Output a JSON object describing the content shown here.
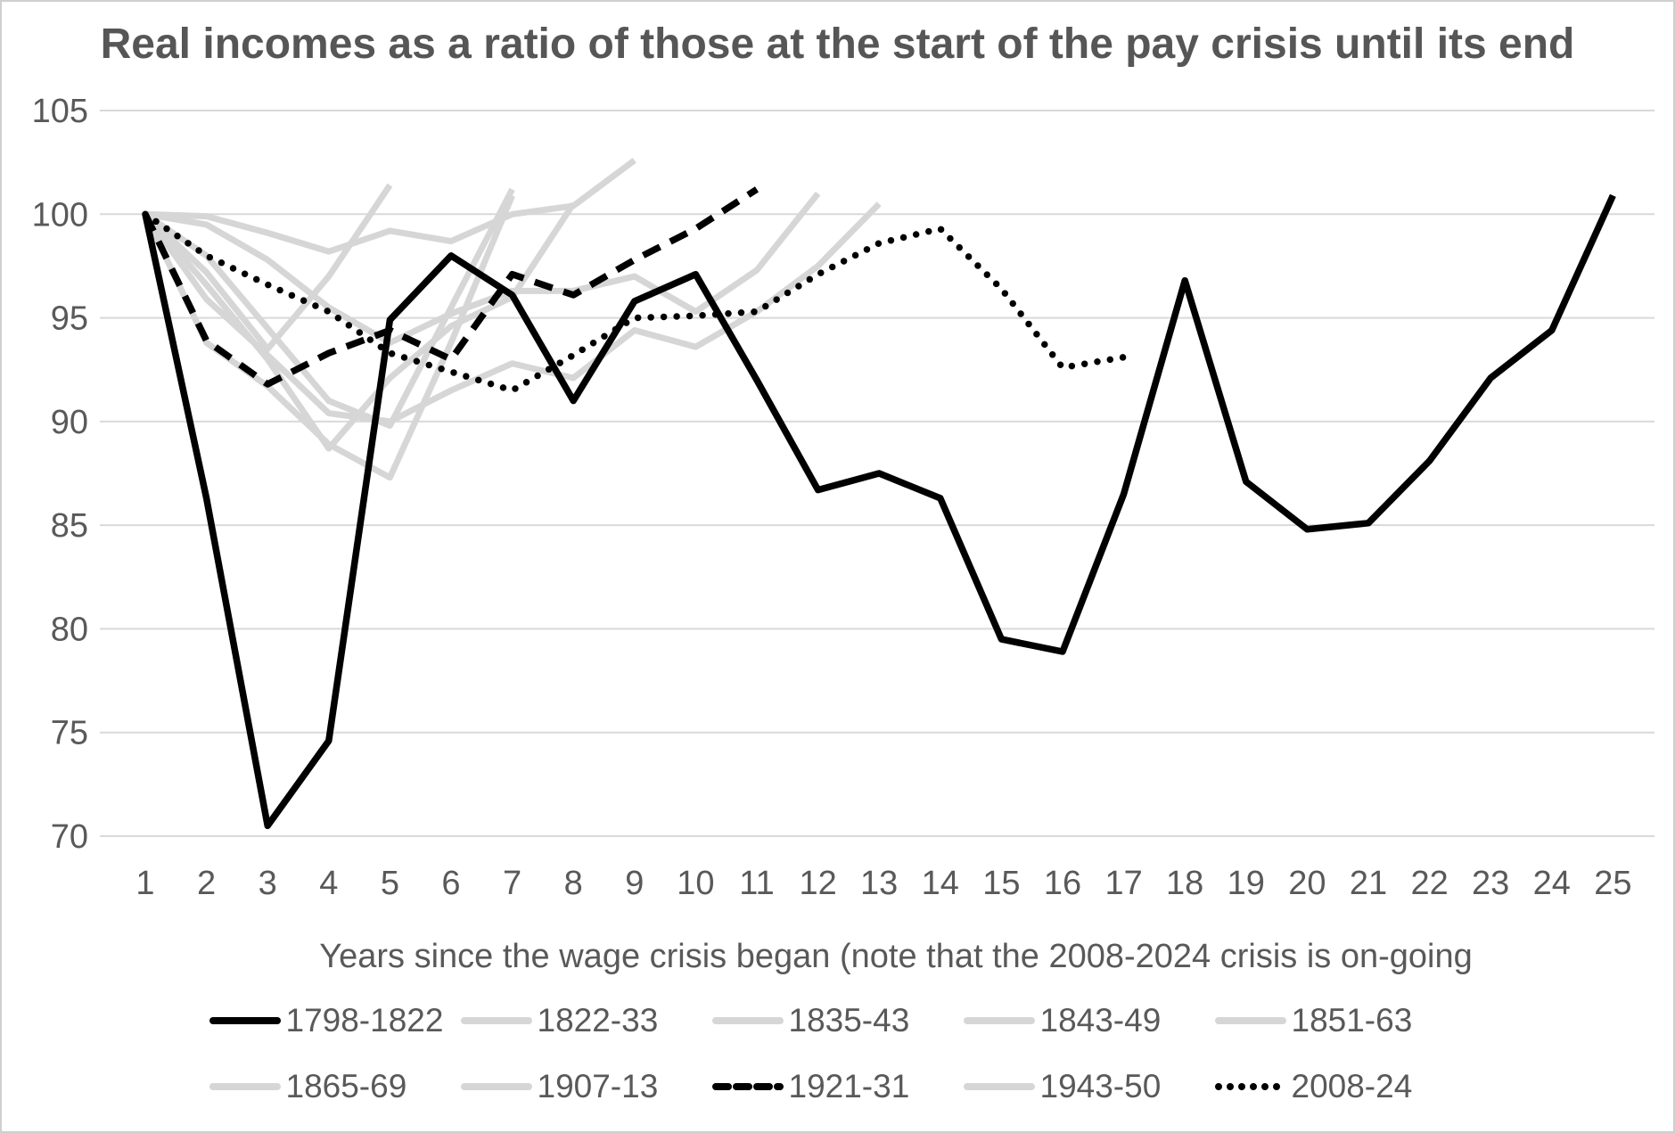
{
  "window": {
    "background": "#ffffff",
    "frame_border_color": "#cfcfcf"
  },
  "chart_data": {
    "type": "line",
    "title": "Real incomes as a ratio of those at the start of the pay crisis until its end",
    "xlabel": "Years since the wage crisis began (note that the 2008-2024 crisis is on-going",
    "ylabel": "",
    "xlim": [
      1,
      25
    ],
    "ylim": [
      70,
      105
    ],
    "grid": "horizontal",
    "gridline_color": "#d9d9d9",
    "axis_text_color": "#595959",
    "title_color": "#565656",
    "legend_position": "bottom",
    "yticks": [
      105,
      100,
      95,
      90,
      85,
      80,
      75,
      70
    ],
    "xticks": [
      1,
      2,
      3,
      4,
      5,
      6,
      7,
      8,
      9,
      10,
      11,
      12,
      13,
      14,
      15,
      16,
      17,
      18,
      19,
      20,
      21,
      22,
      23,
      24,
      25
    ],
    "series": [
      {
        "name": "1798-1822",
        "style": "solid",
        "color": "#000000",
        "width": 7.5,
        "values": [
          100,
          86.3,
          70.5,
          74.6,
          94.9,
          98.0,
          96.1,
          91.0,
          95.8,
          97.1,
          92.0,
          86.7,
          87.5,
          86.3,
          79.5,
          78.9,
          86.5,
          96.8,
          87.1,
          84.8,
          85.1,
          88.1,
          92.1,
          94.4,
          100.9
        ]
      },
      {
        "name": "1822-33",
        "style": "solid",
        "color": "#d6d6d6",
        "width": 7,
        "values": [
          100,
          99.5,
          97.8,
          95.5,
          93.8,
          95.2,
          96.3,
          96.3,
          97.0,
          95.3,
          97.3,
          101.0
        ]
      },
      {
        "name": "1835-43",
        "style": "solid",
        "color": "#d6d6d6",
        "width": 7,
        "values": [
          100,
          99.9,
          99.1,
          98.2,
          99.2,
          98.7,
          100.0,
          100.4,
          102.6
        ]
      },
      {
        "name": "1843-49",
        "style": "solid",
        "color": "#d6d6d6",
        "width": 7,
        "values": [
          100,
          98.0,
          94.5,
          91.0,
          89.8,
          95.5,
          101.2
        ]
      },
      {
        "name": "1851-63",
        "style": "solid",
        "color": "#d6d6d6",
        "width": 7,
        "values": [
          100,
          95.9,
          93.2,
          90.4,
          90.0,
          91.5,
          92.8,
          92.1,
          94.4,
          93.6,
          95.3,
          97.5,
          100.5
        ]
      },
      {
        "name": "1865-69",
        "style": "solid",
        "color": "#d6d6d6",
        "width": 7,
        "values": [
          100,
          97.2,
          93.5,
          97.0,
          101.4
        ]
      },
      {
        "name": "1907-13",
        "style": "solid",
        "color": "#d6d6d6",
        "width": 7,
        "values": [
          100,
          93.8,
          91.7,
          88.9,
          87.3,
          93.8,
          100.9
        ]
      },
      {
        "name": "1921-31",
        "style": "dashed",
        "color": "#000000",
        "width": 7.5,
        "values": [
          100,
          93.9,
          91.8,
          93.3,
          94.4,
          93.0,
          97.1,
          96.1,
          97.8,
          99.3,
          101.2
        ]
      },
      {
        "name": "1943-50",
        "style": "solid",
        "color": "#d6d6d6",
        "width": 7,
        "values": [
          100,
          96.6,
          93.0,
          88.7,
          92.1,
          94.6,
          96.0,
          100.5
        ]
      },
      {
        "name": "2008-24",
        "style": "dotted",
        "color": "#000000",
        "width": 7.5,
        "values": [
          100,
          98.0,
          96.6,
          95.3,
          93.3,
          92.4,
          91.5,
          93.2,
          95.0,
          95.1,
          95.3,
          97.1,
          98.6,
          99.3,
          96.4,
          92.6,
          93.1
        ]
      }
    ],
    "draw_order": [
      "1822-33",
      "1835-43",
      "1843-49",
      "1851-63",
      "1865-69",
      "1907-13",
      "1943-50",
      "1798-1822",
      "1921-31",
      "2008-24"
    ]
  },
  "legend": {
    "rows": [
      [
        "1798-1822",
        "1822-33",
        "1835-43",
        "1843-49",
        "1851-63"
      ],
      [
        "1865-69",
        "1907-13",
        "1921-31",
        "1943-50",
        "2008-24"
      ]
    ]
  }
}
